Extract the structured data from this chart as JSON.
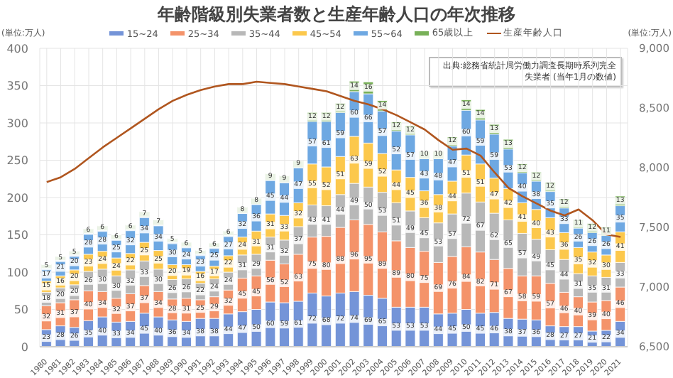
{
  "chart_data": {
    "type": "bar",
    "stacked": true,
    "title": "年齢階級別失業者数と生産年齢人口の年次推移",
    "ylabel": "(単位:万人)",
    "y2label": "(単位:万人)",
    "categories": [
      "1980",
      "1981",
      "1982",
      "1983",
      "1984",
      "1985",
      "1986",
      "1987",
      "1988",
      "1989",
      "1990",
      "1991",
      "1992",
      "1993",
      "1994",
      "1995",
      "1996",
      "1997",
      "1998",
      "1999",
      "2000",
      "2001",
      "2002",
      "2003",
      "2004",
      "2005",
      "2006",
      "2007",
      "2008",
      "2009",
      "2010",
      "2011",
      "2012",
      "2013",
      "2014",
      "2015",
      "2016",
      "2017",
      "2018",
      "2019",
      "2020",
      "2021"
    ],
    "series": [
      {
        "name": "15~24",
        "color": "#7494d8",
        "values": [
          23,
          28,
          26,
          35,
          40,
          33,
          34,
          45,
          40,
          36,
          34,
          38,
          38,
          44,
          47,
          50,
          60,
          59,
          61,
          72,
          68,
          72,
          74,
          69,
          65,
          53,
          53,
          53,
          44,
          45,
          50,
          45,
          46,
          38,
          37,
          36,
          28,
          27,
          27,
          21,
          22,
          34
        ],
        "value_labels": [
          "23",
          "28",
          "26",
          "35",
          "40",
          "33",
          "34",
          "45",
          "40",
          "36",
          "34",
          "38",
          "38",
          "44",
          "47",
          "50",
          "60",
          "59",
          "61",
          "72",
          "68",
          "72",
          "74",
          "69",
          "65",
          "53",
          "53",
          "53",
          "44",
          "45",
          "50",
          "45",
          "46",
          "38",
          "37",
          "36",
          "28",
          "27",
          "27",
          "21",
          "22",
          "34"
        ]
      },
      {
        "name": "25~34",
        "color": "#f4936a",
        "values": [
          32,
          31,
          37,
          40,
          34,
          32,
          37,
          37,
          34,
          28,
          31,
          25,
          29,
          32,
          45,
          45,
          56,
          52,
          63,
          75,
          80,
          88,
          96,
          95,
          89,
          89,
          80,
          75,
          69,
          76,
          84,
          82,
          71,
          67,
          58,
          59,
          57,
          46,
          40,
          39,
          40,
          46
        ],
        "value_labels": [
          "32",
          "31",
          "37",
          "40",
          "34",
          "32",
          "37",
          "37",
          "34",
          "28",
          "31",
          "25",
          "29",
          "32",
          "45",
          "45",
          "56",
          "52",
          "63",
          "75",
          "80",
          "88",
          "96",
          "95",
          "89",
          "89",
          "80",
          "75",
          "69",
          "76",
          "84",
          "82",
          "71",
          "67",
          "58",
          "59",
          "57",
          "46",
          "40",
          "39",
          "40",
          "46"
        ]
      },
      {
        "name": "35~44",
        "color": "#b8b8b8",
        "values": [
          18,
          20,
          20,
          26,
          30,
          30,
          32,
          33,
          30,
          26,
          26,
          22,
          24,
          24,
          31,
          29,
          31,
          32,
          37,
          43,
          41,
          44,
          49,
          50,
          53,
          51,
          49,
          45,
          53,
          57,
          72,
          67,
          62,
          65,
          57,
          49,
          45,
          44,
          31,
          35,
          31,
          33
        ],
        "value_labels": [
          "18",
          "20",
          "20",
          "26",
          "30",
          "30",
          "32",
          "33",
          "30",
          "26",
          "26",
          "22",
          "24",
          "24",
          "31",
          "29",
          "31",
          "32",
          "37",
          "43",
          "41",
          "44",
          "49",
          "50",
          "53",
          "51",
          "49",
          "45",
          "53",
          "57",
          "72",
          "67",
          "62",
          "65",
          "57",
          "49",
          "45",
          "44",
          "31",
          "35",
          "31",
          "33"
        ]
      },
      {
        "name": "45~54",
        "color": "#fcc84c",
        "values": [
          15,
          16,
          20,
          23,
          24,
          24,
          22,
          25,
          25,
          20,
          19,
          16,
          17,
          22,
          24,
          31,
          31,
          33,
          32,
          55,
          52,
          51,
          63,
          59,
          52,
          44,
          45,
          36,
          38,
          44,
          51,
          51,
          47,
          42,
          41,
          40,
          43,
          36,
          35,
          32,
          30,
          41
        ],
        "value_labels": [
          "15",
          "16",
          "20",
          "23",
          "24",
          "24",
          "22",
          "25",
          "25",
          "20",
          "19",
          "16",
          "17",
          "22",
          "24",
          "31",
          "31",
          "33",
          "32",
          "55",
          "52",
          "51",
          "63",
          "59",
          "52",
          "44",
          "45",
          "36",
          "38",
          "44",
          "51",
          "51",
          "47",
          "42",
          "41",
          "40",
          "43",
          "36",
          "35",
          "32",
          "30",
          "41"
        ]
      },
      {
        "name": "55~64",
        "color": "#6ea8e2",
        "values": [
          17,
          21,
          20,
          28,
          28,
          25,
          32,
          34,
          34,
          30,
          24,
          23,
          25,
          27,
          32,
          36,
          45,
          44,
          47,
          57,
          61,
          59,
          60,
          66,
          57,
          52,
          57,
          43,
          48,
          47,
          60,
          59,
          59,
          53,
          40,
          38,
          35,
          33,
          26,
          26,
          26,
          35
        ],
        "value_labels": [
          "17",
          "21",
          "20",
          "28",
          "28",
          "25",
          "32",
          "34",
          "34",
          "30",
          "24",
          "23",
          "25",
          "27",
          "32",
          "36",
          "45",
          "44",
          "47",
          "57",
          "61",
          "59",
          "60",
          "66",
          "57",
          "52",
          "57",
          "43",
          "48",
          "47",
          "60",
          "59",
          "59",
          "53",
          "40",
          "38",
          "35",
          "33",
          "26",
          "26",
          "26",
          "35"
        ]
      },
      {
        "name": "65歳以上",
        "color": "#78b058",
        "values": [
          5,
          5,
          5,
          6,
          6,
          6,
          6,
          7,
          7,
          5,
          6,
          5,
          6,
          6,
          8,
          8,
          9,
          9,
          9,
          12,
          12,
          12,
          14,
          16,
          14,
          12,
          12,
          10,
          10,
          12,
          14,
          14,
          13,
          13,
          12,
          12,
          12,
          12,
          11,
          12,
          11,
          13
        ],
        "value_labels": [
          "5",
          "5",
          "5",
          "6",
          "6",
          "6",
          "6",
          "7",
          "7",
          "5",
          "6",
          "5",
          "6",
          "6",
          "8",
          "8",
          "9",
          "9",
          "9",
          "12",
          "12",
          "12",
          "14",
          "16",
          "14",
          "12",
          "12",
          "10",
          "10",
          "12",
          "14",
          "14",
          "13",
          "13",
          "12",
          "12",
          "12",
          "12",
          "11",
          "12",
          "11",
          "13"
        ]
      },
      {
        "name": "生産年齢人口",
        "type": "line",
        "axis": "y2",
        "color": "#b0561f",
        "values": [
          7880,
          7920,
          7990,
          8080,
          8170,
          8250,
          8330,
          8410,
          8490,
          8560,
          8610,
          8650,
          8680,
          8700,
          8700,
          8720,
          8710,
          8700,
          8680,
          8660,
          8640,
          8600,
          8560,
          8530,
          8490,
          8440,
          8380,
          8320,
          8230,
          8150,
          8160,
          8100,
          7960,
          7830,
          7760,
          7700,
          7640,
          7600,
          7650,
          7560,
          7440,
          7420
        ]
      }
    ],
    "ylim": [
      0,
      400
    ],
    "yticks": [
      0,
      50,
      100,
      150,
      200,
      250,
      300,
      350,
      400
    ],
    "y2lim": [
      6500,
      9000
    ],
    "y2ticks": [
      {
        "value": 6500,
        "label": "6,500"
      },
      {
        "value": 7000,
        "label": "7,000"
      },
      {
        "value": 7500,
        "label": "7,500"
      },
      {
        "value": 8000,
        "label": "8,000"
      },
      {
        "value": 8500,
        "label": "8,500"
      },
      {
        "value": 9000,
        "label": "9,000"
      }
    ],
    "grid": true,
    "legend": "top",
    "marker": "none",
    "annotations": [
      "出典:総務省統計局労働力調査長期時系列完全失業者 (当年1月の数値)"
    ]
  }
}
